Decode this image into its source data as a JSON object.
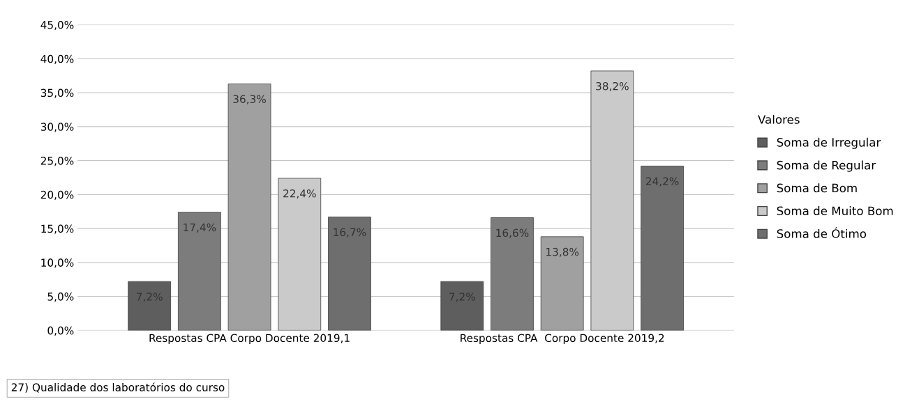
{
  "chart_data": {
    "type": "bar",
    "categories": [
      "Respostas CPA Corpo Docente 2019,1",
      "Respostas CPA  Corpo Docente 2019,2"
    ],
    "series": [
      {
        "name": "Soma de Irregular",
        "color": "#5e5e5e",
        "values": [
          7.2,
          7.2
        ],
        "value_labels": [
          "7,2%",
          "7,2%"
        ]
      },
      {
        "name": "Soma de Regular",
        "color": "#7c7c7c",
        "values": [
          17.4,
          16.6
        ],
        "value_labels": [
          "17,4%",
          "16,6%"
        ]
      },
      {
        "name": "Soma de Bom",
        "color": "#a0a0a0",
        "values": [
          36.3,
          13.8
        ],
        "value_labels": [
          "36,3%",
          "13,8%"
        ]
      },
      {
        "name": "Soma de Muito Bom",
        "color": "#cacaca",
        "values": [
          22.4,
          38.2
        ],
        "value_labels": [
          "22,4%",
          "38,2%"
        ]
      },
      {
        "name": "Soma de Ótimo",
        "color": "#6e6e6e",
        "values": [
          16.7,
          24.2
        ],
        "value_labels": [
          "16,7%",
          "24,2%"
        ]
      }
    ],
    "ylim": [
      0,
      45
    ],
    "yticks": [
      {
        "value": 0,
        "label": "0,0%"
      },
      {
        "value": 5,
        "label": "5,0%"
      },
      {
        "value": 10,
        "label": "10,0%"
      },
      {
        "value": 15,
        "label": "15,0%"
      },
      {
        "value": 20,
        "label": "20,0%"
      },
      {
        "value": 25,
        "label": "25,0%"
      },
      {
        "value": 30,
        "label": "30,0%"
      },
      {
        "value": 35,
        "label": "35,0%"
      },
      {
        "value": 40,
        "label": "40,0%"
      },
      {
        "value": 45,
        "label": "45,0%"
      }
    ],
    "grid": "y",
    "legend": "right",
    "legend_title": "Valores",
    "annotations": [
      "27) Qualidade dos laboratórios do curso"
    ]
  }
}
